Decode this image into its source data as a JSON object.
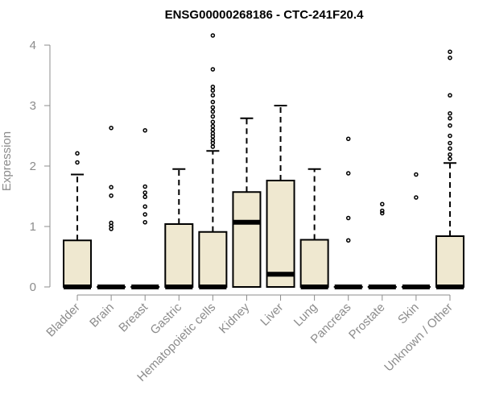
{
  "chart_data": {
    "type": "box",
    "title": "ENSG00000268186 - CTC-241F20.4",
    "ylabel": "Expression",
    "xlabel": "",
    "ylim": [
      0,
      4.2
    ],
    "yticks": [
      0,
      1,
      2,
      3,
      4
    ],
    "grid": false,
    "box_fill": "#efe8d0",
    "categories": [
      "Bladder",
      "Brain",
      "Breast",
      "Gastric",
      "Hematopoietic cells",
      "Kidney",
      "Liver",
      "Lung",
      "Pancreas",
      "Prostate",
      "Skin",
      "Unknown / Other"
    ],
    "boxes": [
      {
        "q1": 0,
        "median": 0,
        "q3": 0.77,
        "whisker_high": 1.86,
        "outliers": [
          2.06,
          2.21
        ]
      },
      {
        "q1": 0,
        "median": 0,
        "q3": 0,
        "whisker_high": 0,
        "outliers": [
          0.96,
          1.01,
          1.06,
          1.51,
          1.65,
          2.63
        ]
      },
      {
        "q1": 0,
        "median": 0,
        "q3": 0,
        "whisker_high": 0,
        "outliers": [
          1.07,
          1.2,
          1.33,
          1.49,
          1.56,
          1.66,
          2.59
        ]
      },
      {
        "q1": 0,
        "median": 0,
        "q3": 1.04,
        "whisker_high": 1.95,
        "outliers": []
      },
      {
        "q1": 0,
        "median": 0,
        "q3": 0.91,
        "whisker_high": 2.25,
        "outliers": [
          2.32,
          2.38,
          2.43,
          2.49,
          2.54,
          2.6,
          2.66,
          2.73,
          2.82,
          2.9,
          2.97,
          3.06,
          3.17,
          3.25,
          3.31,
          3.6,
          4.16
        ]
      },
      {
        "q1": 0,
        "median": 1.07,
        "q3": 1.57,
        "whisker_high": 2.79,
        "outliers": []
      },
      {
        "q1": 0,
        "median": 0.21,
        "q3": 1.76,
        "whisker_high": 3.0,
        "outliers": []
      },
      {
        "q1": 0,
        "median": 0,
        "q3": 0.78,
        "whisker_high": 1.95,
        "outliers": []
      },
      {
        "q1": 0,
        "median": 0,
        "q3": 0,
        "whisker_high": 0,
        "outliers": [
          0.77,
          1.14,
          1.88,
          2.45
        ]
      },
      {
        "q1": 0,
        "median": 0,
        "q3": 0,
        "whisker_high": 0,
        "outliers": [
          1.22,
          1.26,
          1.37
        ]
      },
      {
        "q1": 0,
        "median": 0,
        "q3": 0,
        "whisker_high": 0,
        "outliers": [
          1.48,
          1.86
        ]
      },
      {
        "q1": 0,
        "median": 0,
        "q3": 0.84,
        "whisker_high": 2.05,
        "outliers": [
          2.12,
          2.19,
          2.29,
          2.38,
          2.5,
          2.67,
          2.79,
          2.87,
          3.17,
          3.79,
          3.89
        ]
      }
    ]
  }
}
